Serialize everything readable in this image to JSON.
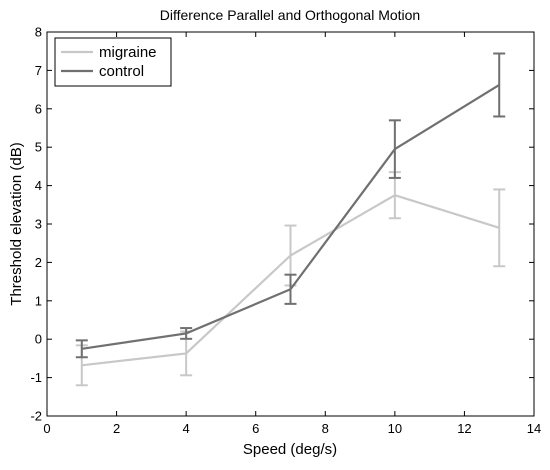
{
  "chart_data": {
    "type": "line",
    "title": "Difference Parallel and Orthogonal Motion",
    "xlabel": "Speed (deg/s)",
    "ylabel": "Threshold elevation (dB)",
    "xlim": [
      0,
      14
    ],
    "ylim": [
      -2,
      8
    ],
    "xticks": [
      0,
      2,
      4,
      6,
      8,
      10,
      12,
      14
    ],
    "yticks": [
      -2,
      -1,
      0,
      1,
      2,
      3,
      4,
      5,
      6,
      7,
      8
    ],
    "grid": false,
    "legend_position": "top-left",
    "series": [
      {
        "name": "migraine",
        "color": "#c8c8c8",
        "x": [
          1,
          4,
          7,
          10,
          13
        ],
        "y": [
          -0.68,
          -0.37,
          2.18,
          3.75,
          2.9
        ],
        "err_low": [
          0.52,
          0.57,
          0.78,
          0.6,
          1.0
        ],
        "err_high": [
          0.52,
          0.57,
          0.78,
          0.6,
          1.0
        ]
      },
      {
        "name": "control",
        "color": "#707070",
        "x": [
          1,
          4,
          7,
          10,
          13
        ],
        "y": [
          -0.25,
          0.15,
          1.3,
          4.95,
          6.62
        ],
        "err_low": [
          0.22,
          0.14,
          0.38,
          0.75,
          0.82
        ],
        "err_high": [
          0.22,
          0.14,
          0.38,
          0.75,
          0.82
        ]
      }
    ]
  }
}
